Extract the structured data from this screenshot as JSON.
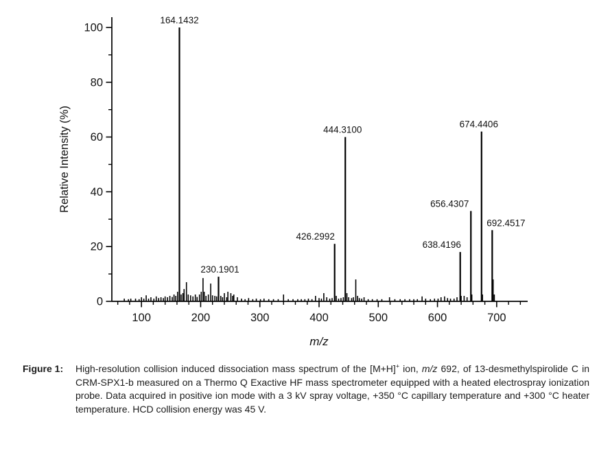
{
  "chart_data": {
    "type": "bar",
    "subtype": "mass-spectrum-stick-plot",
    "title": "",
    "xlabel": "m/z",
    "ylabel": "Relative Intensity (%)",
    "xlim": [
      50,
      750
    ],
    "ylim": [
      0,
      100
    ],
    "grid": false,
    "legend": "none",
    "x_major_ticks": [
      100,
      200,
      300,
      400,
      500,
      600,
      700
    ],
    "x_minor_tick_step": 20,
    "y_major_ticks": [
      0,
      20,
      40,
      60,
      80,
      100
    ],
    "y_minor_tick_step": 10,
    "labeled_peaks": [
      {
        "mz": 164.1432,
        "intensity": 100,
        "label": "164.1432",
        "label_dx": 0
      },
      {
        "mz": 230.1901,
        "intensity": 9,
        "label": "230.1901",
        "label_dx": 2
      },
      {
        "mz": 426.2992,
        "intensity": 21,
        "label": "426.2992",
        "label_dx": -28
      },
      {
        "mz": 444.31,
        "intensity": 60,
        "label": "444.3100",
        "label_dx": -4
      },
      {
        "mz": 638.4196,
        "intensity": 18,
        "label": "638.4196",
        "label_dx": -27
      },
      {
        "mz": 656.4307,
        "intensity": 33,
        "label": "656.4307",
        "label_dx": -31
      },
      {
        "mz": 674.4406,
        "intensity": 62,
        "label": "674.4406",
        "label_dx": -4
      },
      {
        "mz": 692.4517,
        "intensity": 26,
        "label": "692.4517",
        "label_dx": 20
      }
    ],
    "unlabeled_peaks": [
      [
        71,
        1
      ],
      [
        78,
        0.8
      ],
      [
        82,
        1
      ],
      [
        90,
        1
      ],
      [
        96,
        0.8
      ],
      [
        100,
        1.5
      ],
      [
        104,
        1
      ],
      [
        108,
        2.2
      ],
      [
        112,
        1
      ],
      [
        116,
        1.5
      ],
      [
        121,
        1
      ],
      [
        125,
        1.8
      ],
      [
        129,
        1.2
      ],
      [
        133,
        1.5
      ],
      [
        137,
        1.2
      ],
      [
        140,
        1.8
      ],
      [
        144,
        1.5
      ],
      [
        148,
        2
      ],
      [
        152,
        1.6
      ],
      [
        155,
        2.5
      ],
      [
        158,
        2
      ],
      [
        161,
        3.5
      ],
      [
        167,
        2.5
      ],
      [
        170,
        3
      ],
      [
        172,
        4.5
      ],
      [
        176,
        7
      ],
      [
        179,
        2.5
      ],
      [
        183,
        2.2
      ],
      [
        187,
        1.8
      ],
      [
        191,
        2.5
      ],
      [
        194,
        1.6
      ],
      [
        198,
        2.5
      ],
      [
        201,
        3.5
      ],
      [
        204,
        8.5
      ],
      [
        206,
        3.5
      ],
      [
        209,
        2
      ],
      [
        213,
        2.5
      ],
      [
        217,
        6.5
      ],
      [
        220,
        2.2
      ],
      [
        224,
        2
      ],
      [
        227,
        1.8
      ],
      [
        234,
        2
      ],
      [
        237,
        1.5
      ],
      [
        240,
        3
      ],
      [
        244,
        1.5
      ],
      [
        246,
        3.5
      ],
      [
        251,
        3
      ],
      [
        254,
        2
      ],
      [
        256,
        2.5
      ],
      [
        262,
        1.5
      ],
      [
        269,
        1
      ],
      [
        275,
        0.8
      ],
      [
        281,
        1.2
      ],
      [
        288,
        0.8
      ],
      [
        294,
        1
      ],
      [
        301,
        0.8
      ],
      [
        307,
        1
      ],
      [
        315,
        0.8
      ],
      [
        323,
        0.8
      ],
      [
        331,
        0.8
      ],
      [
        340,
        2.5
      ],
      [
        348,
        0.8
      ],
      [
        356,
        0.8
      ],
      [
        364,
        0.8
      ],
      [
        370,
        0.8
      ],
      [
        376,
        0.8
      ],
      [
        382,
        1
      ],
      [
        388,
        0.8
      ],
      [
        394,
        2
      ],
      [
        400,
        1.2
      ],
      [
        404,
        1
      ],
      [
        408,
        3
      ],
      [
        413,
        1.5
      ],
      [
        418,
        1
      ],
      [
        422,
        1.2
      ],
      [
        429,
        2
      ],
      [
        433,
        1
      ],
      [
        437,
        1.2
      ],
      [
        441,
        1.5
      ],
      [
        447,
        3
      ],
      [
        450,
        1.5
      ],
      [
        455,
        1.2
      ],
      [
        458,
        1.5
      ],
      [
        462,
        8
      ],
      [
        465,
        2
      ],
      [
        468,
        1.2
      ],
      [
        472,
        1
      ],
      [
        476,
        1.5
      ],
      [
        483,
        0.8
      ],
      [
        490,
        0.8
      ],
      [
        498,
        0.8
      ],
      [
        506,
        0.8
      ],
      [
        519,
        1.5
      ],
      [
        528,
        0.8
      ],
      [
        537,
        0.8
      ],
      [
        545,
        0.8
      ],
      [
        553,
        0.8
      ],
      [
        560,
        0.8
      ],
      [
        566,
        0.8
      ],
      [
        574,
        1.8
      ],
      [
        580,
        1
      ],
      [
        588,
        0.8
      ],
      [
        595,
        1
      ],
      [
        601,
        1
      ],
      [
        606,
        1.5
      ],
      [
        612,
        1.8
      ],
      [
        617,
        1.2
      ],
      [
        622,
        1
      ],
      [
        628,
        1
      ],
      [
        633,
        1.5
      ],
      [
        640,
        2
      ],
      [
        645,
        2
      ],
      [
        650,
        1.5
      ],
      [
        658,
        2.5
      ],
      [
        676,
        2.5
      ],
      [
        694,
        8
      ],
      [
        696,
        2.5
      ]
    ]
  },
  "caption": {
    "label": "Figure 1:",
    "segments": [
      {
        "text": "High-resolution collision induced dissociation mass spectrum of the [M+H]"
      },
      {
        "text": "+",
        "style": "sup"
      },
      {
        "text": " ion, "
      },
      {
        "text": "m/z",
        "style": "italic"
      },
      {
        "text": " 692, of 13-desmethylspirolide C in CRM-SPX1-b measured on a Thermo Q Exactive HF mass spectrometer equipped with a heated electrospray ionization probe. Data acquired in positive ion mode with a 3 kV spray voltage, +350 °C capillary temperature and +300 °C heater temperature. HCD collision energy was 45 V."
      }
    ]
  },
  "colors": {
    "ink": "#000000",
    "peak_label_text": "#1a1a1a",
    "background": "#ffffff"
  }
}
